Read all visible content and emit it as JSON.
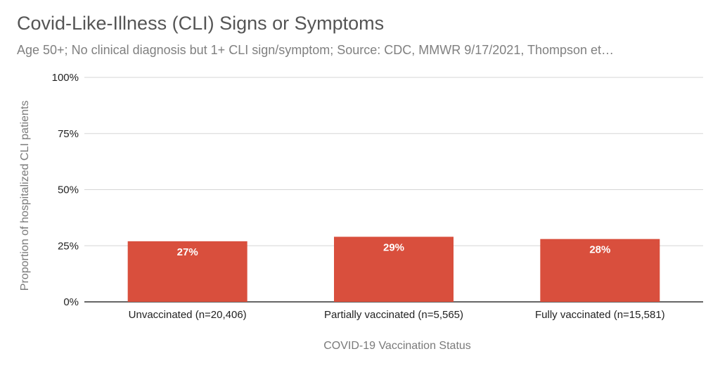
{
  "chart_data": {
    "type": "bar",
    "title": "Covid-Like-Illness (CLI) Signs or Symptoms",
    "subtitle": "Age 50+; No clinical diagnosis but 1+ CLI sign/symptom; Source: CDC, MMWR 9/17/2021, Thompson et…",
    "xlabel": "COVID-19 Vaccination Status",
    "ylabel": "Proportion of hospitalized CLI patients",
    "categories": [
      "Unvaccinated (n=20,406)",
      "Partially vaccinated (n=5,565)",
      "Fully vaccinated (n=15,581)"
    ],
    "values": [
      27,
      29,
      28
    ],
    "data_labels": [
      "27%",
      "29%",
      "28%"
    ],
    "yticks": [
      0,
      25,
      50,
      75,
      100
    ],
    "ytick_labels": [
      "0%",
      "25%",
      "50%",
      "75%",
      "100%"
    ],
    "ylim": [
      0,
      100
    ],
    "grid": true,
    "bar_color": "#d94f3d"
  }
}
